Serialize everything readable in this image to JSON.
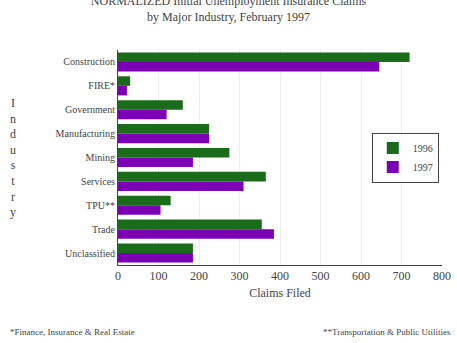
{
  "chart_data": {
    "type": "bar",
    "orientation": "horizontal",
    "title": "NORMALIZED Initial Unemployment Insurance Claims",
    "subtitle": "by Major Industry, February 1997",
    "xlabel": "Claims Filed",
    "ylabel": "Industry",
    "categories": [
      "Construction",
      "FIRE*",
      "Government",
      "Manufacturing",
      "Mining",
      "Services",
      "TPU**",
      "Trade",
      "Unclassified"
    ],
    "series": [
      {
        "name": "1996",
        "color": "#1a6b1a",
        "values": [
          720,
          30,
          160,
          225,
          275,
          365,
          130,
          355,
          185
        ]
      },
      {
        "name": "1997",
        "color": "#7b00b4",
        "values": [
          645,
          22,
          120,
          225,
          185,
          310,
          105,
          385,
          185
        ]
      }
    ],
    "xlim": [
      0,
      800
    ],
    "xticks": [
      0,
      100,
      200,
      300,
      400,
      500,
      600,
      700,
      800
    ],
    "grid": true,
    "legend": "right",
    "annotations": [
      "*Finance, Insurance & Real Estate",
      "**Transportation & Public Utilities"
    ]
  }
}
